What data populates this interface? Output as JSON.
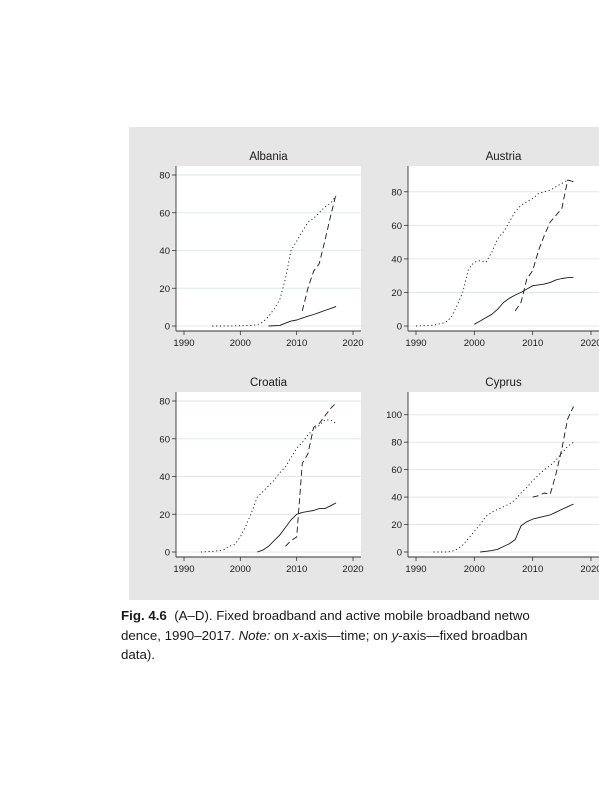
{
  "chart_data": [
    {
      "type": "line",
      "title": "Albania",
      "xlim": [
        1990,
        2020
      ],
      "ylim": [
        0,
        80
      ],
      "xticks": [
        "1990",
        "2000",
        "2010",
        "2020"
      ],
      "yticks": [
        "0",
        "20",
        "40",
        "60",
        "80"
      ],
      "grid": true,
      "series": [
        {
          "style": "solid",
          "x": [
            2005,
            2007,
            2008,
            2009,
            2010,
            2011,
            2012,
            2013,
            2014,
            2015,
            2016,
            2017
          ],
          "y": [
            0,
            0.3,
            1.5,
            2.6,
            3.2,
            4.2,
            5.2,
            6.1,
            7.1,
            8.2,
            9.2,
            10.4
          ]
        },
        {
          "style": "dotted",
          "x": [
            1995,
            1998,
            2001,
            2002,
            2003,
            2004,
            2005,
            2006,
            2007,
            2008,
            2009,
            2010,
            2011,
            2012,
            2013,
            2014,
            2015,
            2016,
            2017
          ],
          "y": [
            0,
            0,
            0.2,
            0.3,
            0.7,
            2,
            5,
            9,
            14,
            25,
            40,
            45,
            50,
            55,
            57,
            60,
            63,
            65,
            69
          ]
        },
        {
          "style": "dashed",
          "x": [
            2011,
            2012,
            2013,
            2014,
            2015,
            2016,
            2017
          ],
          "y": [
            8,
            20,
            29,
            33,
            45,
            58,
            70
          ]
        }
      ]
    },
    {
      "type": "line",
      "title": "Austria",
      "xlim": [
        1990,
        2020
      ],
      "ylim": [
        0,
        90
      ],
      "xticks": [
        "1990",
        "2000",
        "2010",
        "2020"
      ],
      "yticks": [
        "0",
        "20",
        "40",
        "60",
        "80"
      ],
      "grid": true,
      "series": [
        {
          "style": "solid",
          "x": [
            2000,
            2001,
            2002,
            2003,
            2004,
            2005,
            2006,
            2007,
            2008,
            2009,
            2010,
            2011,
            2012,
            2013,
            2014,
            2015,
            2016,
            2017
          ],
          "y": [
            1,
            3,
            5,
            7,
            10,
            14,
            16.5,
            18.5,
            20,
            22,
            24,
            24.5,
            25,
            26,
            27.5,
            28.3,
            28.8,
            29
          ]
        },
        {
          "style": "dotted",
          "x": [
            1990,
            1993,
            1995,
            1996,
            1997,
            1998,
            1999,
            2000,
            2001,
            2002,
            2003,
            2004,
            2005,
            2006,
            2007,
            2008,
            2009,
            2010,
            2011,
            2012,
            2013,
            2014,
            2015,
            2016,
            2017
          ],
          "y": [
            0,
            0.5,
            2,
            5,
            12,
            20,
            34,
            38,
            39,
            38,
            44,
            52,
            56,
            62,
            68,
            72,
            74,
            76,
            79,
            80,
            81,
            83,
            85,
            87,
            86
          ]
        },
        {
          "style": "dashed",
          "x": [
            2007,
            2008,
            2009,
            2010,
            2011,
            2012,
            2013,
            2014,
            2015,
            2016,
            2017
          ],
          "y": [
            9,
            14,
            28,
            33,
            45,
            54,
            62,
            66,
            70,
            87,
            86
          ]
        }
      ]
    },
    {
      "type": "line",
      "title": "Croatia",
      "xlim": [
        1990,
        2020
      ],
      "ylim": [
        0,
        80
      ],
      "xticks": [
        "1990",
        "2000",
        "2010",
        "2020"
      ],
      "yticks": [
        "0",
        "20",
        "40",
        "60",
        "80"
      ],
      "grid": true,
      "series": [
        {
          "style": "solid",
          "x": [
            2003,
            2004,
            2005,
            2006,
            2007,
            2008,
            2009,
            2010,
            2011,
            2012,
            2013,
            2014,
            2015,
            2016,
            2017
          ],
          "y": [
            0,
            1,
            3,
            6,
            9,
            13,
            17,
            20,
            21,
            21.5,
            22,
            23,
            23,
            24.5,
            26
          ]
        },
        {
          "style": "dotted",
          "x": [
            1993,
            1995,
            1997,
            1998,
            1999,
            2000,
            2001,
            2002,
            2003,
            2004,
            2005,
            2006,
            2007,
            2008,
            2009,
            2010,
            2011,
            2012,
            2013,
            2014,
            2015,
            2016,
            2017
          ],
          "y": [
            0,
            0.3,
            1,
            3,
            4,
            8,
            14,
            21,
            29,
            32,
            35,
            38,
            42,
            45,
            50,
            55,
            58,
            62,
            65,
            67,
            70,
            70,
            68
          ]
        },
        {
          "style": "dashed",
          "x": [
            2008,
            2009,
            2010,
            2011,
            2012,
            2013,
            2014,
            2015,
            2016,
            2017
          ],
          "y": [
            3,
            6,
            8,
            47,
            52,
            66,
            68,
            72,
            76,
            79
          ]
        }
      ]
    },
    {
      "type": "line",
      "title": "Cyprus",
      "xlim": [
        1990,
        2020
      ],
      "ylim": [
        0,
        110
      ],
      "xticks": [
        "1990",
        "2000",
        "2010",
        "2020"
      ],
      "yticks": [
        "0",
        "20",
        "40",
        "60",
        "80",
        "100"
      ],
      "grid": true,
      "series": [
        {
          "style": "solid",
          "x": [
            2001,
            2002,
            2003,
            2004,
            2005,
            2006,
            2007,
            2008,
            2009,
            2010,
            2011,
            2012,
            2013,
            2014,
            2015,
            2016,
            2017
          ],
          "y": [
            0,
            0.5,
            1,
            2,
            4,
            6,
            9,
            19,
            22,
            24,
            25,
            26,
            27,
            29,
            31,
            33,
            35
          ]
        },
        {
          "style": "dotted",
          "x": [
            1993,
            1995,
            1996,
            1997,
            1998,
            1999,
            2000,
            2001,
            2002,
            2003,
            2004,
            2005,
            2006,
            2007,
            2008,
            2009,
            2010,
            2011,
            2012,
            2013,
            2014,
            2015,
            2016,
            2017
          ],
          "y": [
            0,
            0,
            0.3,
            2,
            5,
            10,
            15,
            20,
            26,
            29,
            31,
            33,
            35,
            38,
            43,
            47,
            52,
            56,
            60,
            63,
            67,
            72,
            77,
            80
          ]
        },
        {
          "style": "dashed",
          "x": [
            2010,
            2011,
            2012,
            2013,
            2014,
            2015,
            2016,
            2017
          ],
          "y": [
            40,
            41,
            43,
            42,
            57,
            75,
            97,
            106
          ]
        }
      ]
    }
  ],
  "caption": {
    "label": "Fig. 4.6",
    "line1_text": "  (A–D). Fixed broadband and active mobile broadband netwo",
    "line2_a": "dence, 1990–2017. ",
    "line2_note": "Note:",
    "line2_b": " on ",
    "line2_x": "x",
    "line2_c": "-axis—time; on ",
    "line2_y": "y",
    "line2_d": "-axis—fixed broadban",
    "line3": "data)."
  }
}
